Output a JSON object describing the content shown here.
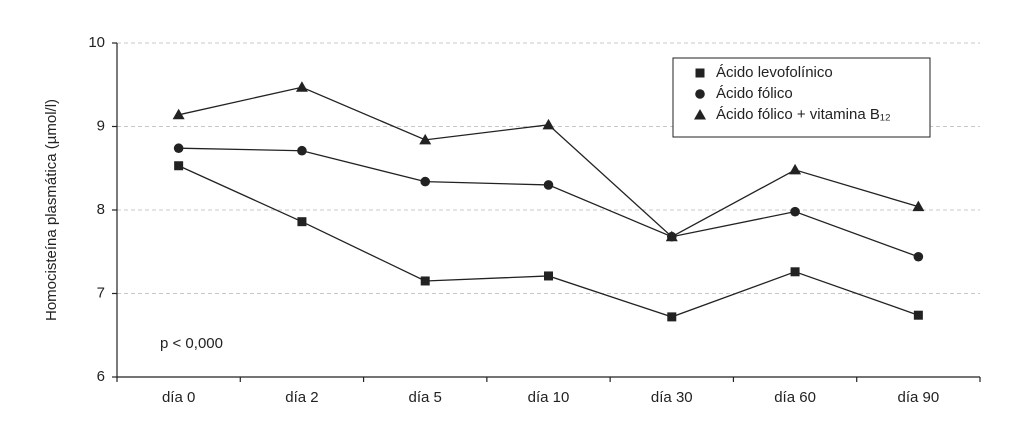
{
  "chart_data": {
    "type": "line",
    "y_label": "Homocisteína plasmática (µmol/l)",
    "annotation": "p < 0,000",
    "categories": [
      "día 0",
      "día 2",
      "día 5",
      "día 10",
      "día 30",
      "día 60",
      "día 90"
    ],
    "series": [
      {
        "name": "Ácido levofolínico",
        "color": "#222222",
        "marker": "square",
        "values": [
          8.53,
          7.86,
          7.15,
          7.21,
          6.72,
          7.26,
          6.74
        ]
      },
      {
        "name": "Ácido fólico",
        "color": "#222222",
        "marker": "circle",
        "values": [
          8.74,
          8.71,
          8.34,
          8.3,
          7.68,
          7.98,
          7.44
        ]
      },
      {
        "name": "Ácido fólico + vitamina B₁₂",
        "color": "#222222",
        "marker": "triangle",
        "values": [
          9.14,
          9.47,
          8.84,
          9.02,
          7.68,
          8.48,
          8.04
        ]
      }
    ],
    "ylim": [
      6,
      10
    ],
    "yticks": [
      6,
      7,
      8,
      9,
      10
    ],
    "grid": true,
    "legend": "upper right"
  }
}
